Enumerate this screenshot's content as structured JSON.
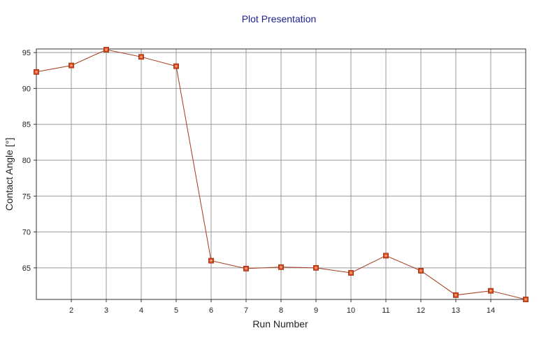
{
  "chart_data": {
    "type": "line",
    "title": "Plot Presentation",
    "xlabel": "Run Number",
    "ylabel": "Contact Angle [°]",
    "x": [
      1,
      2,
      3,
      4,
      5,
      6,
      7,
      8,
      9,
      10,
      11,
      12,
      13,
      14,
      15
    ],
    "values": [
      92.3,
      93.2,
      95.4,
      94.4,
      93.1,
      66.0,
      64.9,
      65.1,
      65.0,
      64.3,
      66.7,
      64.6,
      61.2,
      61.8,
      60.6
    ],
    "xlim": [
      1,
      15
    ],
    "ylim": [
      60.6,
      95.5
    ],
    "xticks": [
      "2",
      "3",
      "4",
      "5",
      "6",
      "7",
      "8",
      "9",
      "10",
      "11",
      "12",
      "13",
      "14"
    ],
    "yticks": [
      "65",
      "70",
      "75",
      "80",
      "85",
      "90",
      "95"
    ],
    "grid": true,
    "line_color": "#a33a1a",
    "marker_color": "#e0481a"
  }
}
